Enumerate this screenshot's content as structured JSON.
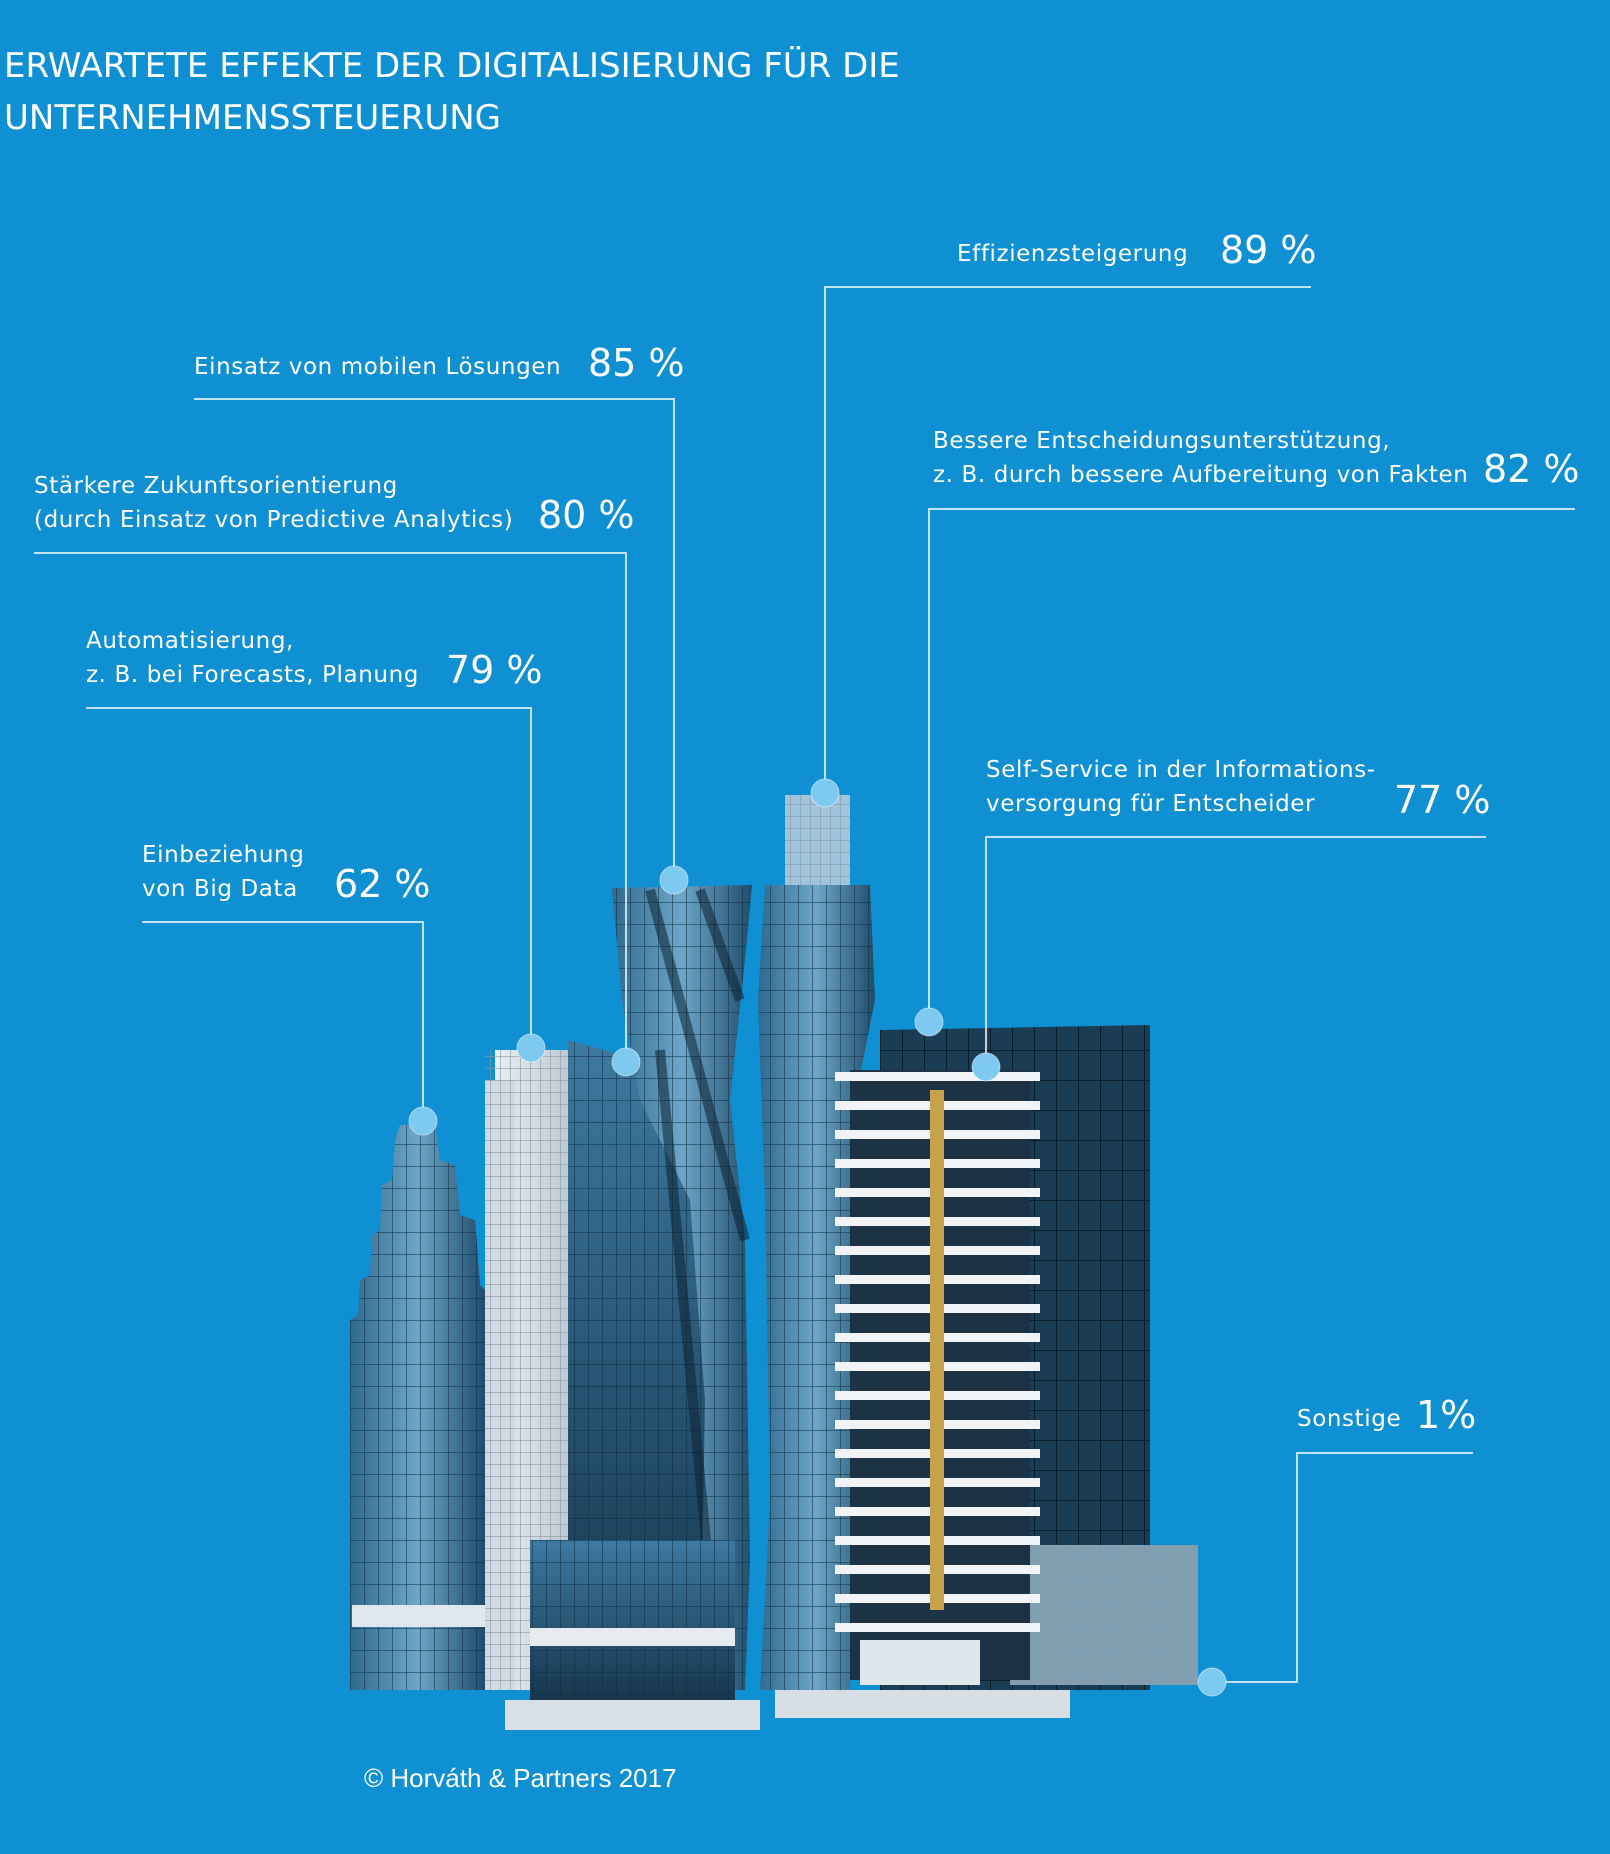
{
  "title": {
    "line1": "ERWARTETE EFFEKTE DER DIGITALISIERUNG FÜR DIE",
    "line2": "UNTERNEHMENSSTEUERUNG"
  },
  "items": [
    {
      "id": "big-data",
      "lines": [
        "Einbeziehung",
        "von Big Data"
      ],
      "value": "62 %"
    },
    {
      "id": "automatisierung",
      "lines": [
        "Automatisierung,",
        "z. B. bei Forecasts, Planung"
      ],
      "value": "79 %"
    },
    {
      "id": "zukunft",
      "lines": [
        "Stärkere Zukunftsorientierung",
        "(durch Einsatz von Predictive Analytics)"
      ],
      "value": "80 %"
    },
    {
      "id": "mobil",
      "lines": [
        "Einsatz von mobilen Lösungen"
      ],
      "value": "85 %"
    },
    {
      "id": "effizienz",
      "lines": [
        "Effizienzsteigerung"
      ],
      "value": "89 %"
    },
    {
      "id": "entscheidung",
      "lines": [
        "Bessere Entscheidungsunterstützung,",
        "z. B. durch bessere Aufbereitung von Fakten"
      ],
      "value": "82 %"
    },
    {
      "id": "self-service",
      "lines": [
        "Self-Service in der Informations-",
        "versorgung für Entscheider"
      ],
      "value": "77 %"
    },
    {
      "id": "sonstige",
      "lines": [
        "Sonstige"
      ],
      "value": "1%"
    }
  ],
  "copyright": "© Horváth & Partners 2017",
  "colors": {
    "background": "#0f90d2",
    "text": "#ffffff",
    "dot": "#7ec9ef",
    "glass_dark": "#1f4f6e",
    "glass_light": "#5c95b8"
  }
}
